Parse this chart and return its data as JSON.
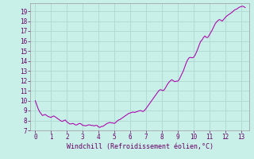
{
  "title": "",
  "xlabel": "Windchill (Refroidissement éolien,°C)",
  "ylabel": "",
  "background_color": "#c8f0e8",
  "grid_color": "#aed8d0",
  "line_color": "#aa00aa",
  "xlim": [
    -0.3,
    13.5
  ],
  "ylim": [
    7,
    19.8
  ],
  "xticks": [
    0,
    1,
    2,
    3,
    4,
    5,
    6,
    7,
    8,
    9,
    10,
    11,
    12,
    13
  ],
  "yticks": [
    7,
    8,
    9,
    10,
    11,
    12,
    13,
    14,
    15,
    16,
    17,
    18,
    19
  ],
  "x": [
    0.0,
    0.09,
    0.18,
    0.27,
    0.36,
    0.45,
    0.54,
    0.63,
    0.72,
    0.81,
    0.9,
    1.0,
    1.09,
    1.18,
    1.27,
    1.36,
    1.45,
    1.54,
    1.63,
    1.72,
    1.81,
    1.9,
    2.0,
    2.09,
    2.18,
    2.27,
    2.36,
    2.45,
    2.54,
    2.63,
    2.72,
    2.81,
    2.9,
    3.0,
    3.09,
    3.18,
    3.27,
    3.36,
    3.45,
    3.54,
    3.63,
    3.72,
    3.81,
    3.9,
    4.0,
    4.09,
    4.18,
    4.27,
    4.36,
    4.45,
    4.54,
    4.63,
    4.72,
    4.81,
    4.9,
    5.0,
    5.09,
    5.18,
    5.27,
    5.36,
    5.45,
    5.54,
    5.63,
    5.72,
    5.81,
    5.9,
    6.0,
    6.09,
    6.18,
    6.27,
    6.36,
    6.45,
    6.54,
    6.63,
    6.72,
    6.81,
    6.9,
    7.0,
    7.09,
    7.18,
    7.27,
    7.36,
    7.45,
    7.54,
    7.63,
    7.72,
    7.81,
    7.9,
    8.0,
    8.09,
    8.18,
    8.27,
    8.36,
    8.45,
    8.54,
    8.63,
    8.72,
    8.81,
    8.9,
    9.0,
    9.09,
    9.18,
    9.27,
    9.36,
    9.45,
    9.54,
    9.63,
    9.72,
    9.81,
    9.9,
    10.0,
    10.09,
    10.18,
    10.27,
    10.36,
    10.45,
    10.54,
    10.63,
    10.72,
    10.81,
    10.9,
    11.0,
    11.09,
    11.18,
    11.27,
    11.36,
    11.45,
    11.54,
    11.63,
    11.72,
    11.81,
    11.9,
    12.0,
    12.09,
    12.18,
    12.27,
    12.36,
    12.45,
    12.54,
    12.63,
    12.72,
    12.81,
    12.9,
    13.0,
    13.09,
    13.18,
    13.27
  ],
  "y": [
    10.0,
    9.6,
    9.2,
    8.9,
    8.7,
    8.5,
    8.55,
    8.6,
    8.5,
    8.4,
    8.35,
    8.3,
    8.4,
    8.45,
    8.35,
    8.25,
    8.15,
    8.05,
    7.95,
    7.9,
    8.0,
    8.05,
    7.85,
    7.75,
    7.65,
    7.65,
    7.7,
    7.65,
    7.55,
    7.55,
    7.65,
    7.7,
    7.65,
    7.5,
    7.5,
    7.45,
    7.5,
    7.55,
    7.55,
    7.5,
    7.5,
    7.45,
    7.5,
    7.5,
    7.35,
    7.3,
    7.4,
    7.4,
    7.5,
    7.6,
    7.7,
    7.75,
    7.8,
    7.75,
    7.75,
    7.7,
    7.8,
    7.95,
    8.05,
    8.1,
    8.2,
    8.3,
    8.4,
    8.5,
    8.6,
    8.7,
    8.75,
    8.8,
    8.85,
    8.8,
    8.85,
    8.9,
    8.95,
    9.0,
    8.95,
    8.9,
    9.0,
    9.2,
    9.4,
    9.6,
    9.8,
    10.0,
    10.2,
    10.4,
    10.6,
    10.8,
    11.0,
    11.1,
    11.05,
    11.0,
    11.15,
    11.4,
    11.65,
    11.85,
    12.0,
    12.1,
    12.0,
    11.9,
    11.95,
    11.95,
    12.1,
    12.4,
    12.7,
    13.0,
    13.4,
    13.8,
    14.1,
    14.3,
    14.35,
    14.3,
    14.35,
    14.55,
    14.85,
    15.2,
    15.6,
    15.95,
    16.1,
    16.35,
    16.5,
    16.35,
    16.35,
    16.6,
    16.85,
    17.1,
    17.4,
    17.7,
    17.9,
    18.05,
    18.15,
    18.1,
    18.0,
    18.15,
    18.35,
    18.5,
    18.6,
    18.7,
    18.8,
    18.9,
    19.05,
    19.15,
    19.2,
    19.3,
    19.4,
    19.45,
    19.5,
    19.45,
    19.35
  ]
}
